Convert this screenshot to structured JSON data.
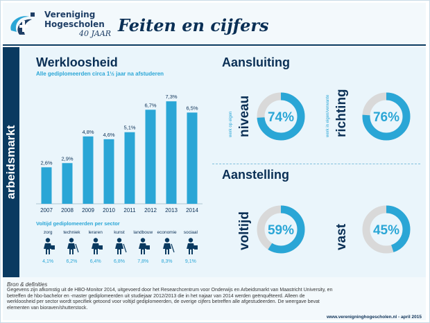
{
  "header": {
    "brand_line1": "Vereniging",
    "brand_line2": "Hogescholen",
    "brand_anniversary": "40 JAAR",
    "title": "Feiten en cijfers"
  },
  "side_label": "arbeidsmarkt",
  "unemployment": {
    "heading": "Werkloosheid",
    "subheading": "Alle gediplomeerden circa 1½ jaar na afstuderen"
  },
  "chart_data": [
    {
      "type": "bar",
      "title": "Werkloosheid",
      "subtitle": "Alle gediplomeerden circa 1½ jaar na afstuderen",
      "categories": [
        "2007",
        "2008",
        "2009",
        "2010",
        "2011",
        "2012",
        "2013",
        "2014"
      ],
      "values": [
        2.6,
        2.9,
        4.8,
        4.6,
        5.1,
        6.7,
        7.3,
        6.5
      ],
      "value_labels": [
        "2,6%",
        "2,9%",
        "4,8%",
        "4,6%",
        "5,1%",
        "6,7%",
        "7,3%",
        "6,5%"
      ],
      "ylim": [
        0,
        8
      ],
      "grid": false,
      "color": "#2aa6d6"
    },
    {
      "type": "pie",
      "title": "Aansluiting",
      "items": [
        {
          "small_label": "werk op eigen",
          "big_label": "niveau",
          "value": 74,
          "value_label": "74%"
        },
        {
          "small_label": "werk in eigen/verwante",
          "big_label": "richting",
          "value": 76,
          "value_label": "76%"
        }
      ],
      "color": "#2aa6d6",
      "track_color": "#d9d9d9"
    },
    {
      "type": "pie",
      "title": "Aanstelling",
      "items": [
        {
          "small_label": "",
          "big_label": "voltijd",
          "value": 59,
          "value_label": "59%"
        },
        {
          "small_label": "",
          "big_label": "vast",
          "value": 45,
          "value_label": "45%"
        }
      ],
      "color": "#2aa6d6",
      "track_color": "#d9d9d9"
    }
  ],
  "sectors": {
    "heading": "Voltijd gediplomeerden per sector",
    "items": [
      {
        "name": "zorg",
        "value": "4,1%",
        "icon": "nurse-icon"
      },
      {
        "name": "techniek",
        "value": "6,2%",
        "icon": "engineer-icon"
      },
      {
        "name": "leraren",
        "value": "6,4%",
        "icon": "teacher-icon"
      },
      {
        "name": "kunst",
        "value": "6,8%",
        "icon": "artist-icon"
      },
      {
        "name": "landbouw",
        "value": "7,8%",
        "icon": "farmer-icon"
      },
      {
        "name": "economie",
        "value": "8,3%",
        "icon": "economist-icon"
      },
      {
        "name": "sociaal",
        "value": "9,1%",
        "icon": "social-worker-icon"
      }
    ]
  },
  "footer": {
    "source_title": "Bron & definities",
    "source_text": "Gegevens zijn afkomstig uit de HBO-Monitor 2014, uitgevoerd door het Researchcentrum voor Onderwijs en Arbeidsmarkt van Maastricht University, en betreffen de hbo-bachelor en -master gediplomeerden uit studiejaar 2012/2013 die in het najaar van 2014 werden geënquêteerd. Alleen de werkloosheid per sector wordt specifiek getoond voor voltijd gediplomeerden, de overige cijfers betreffen alle afgestudeerden. De weergave bevat elementen van bioraven/shutterstock.",
    "url": "www.verenigninghogescholen.nl - april 2015"
  },
  "colors": {
    "navy": "#0a3a60",
    "accent": "#2aa6d6",
    "track": "#d9d9d9",
    "panel": "#eaf5fb"
  }
}
